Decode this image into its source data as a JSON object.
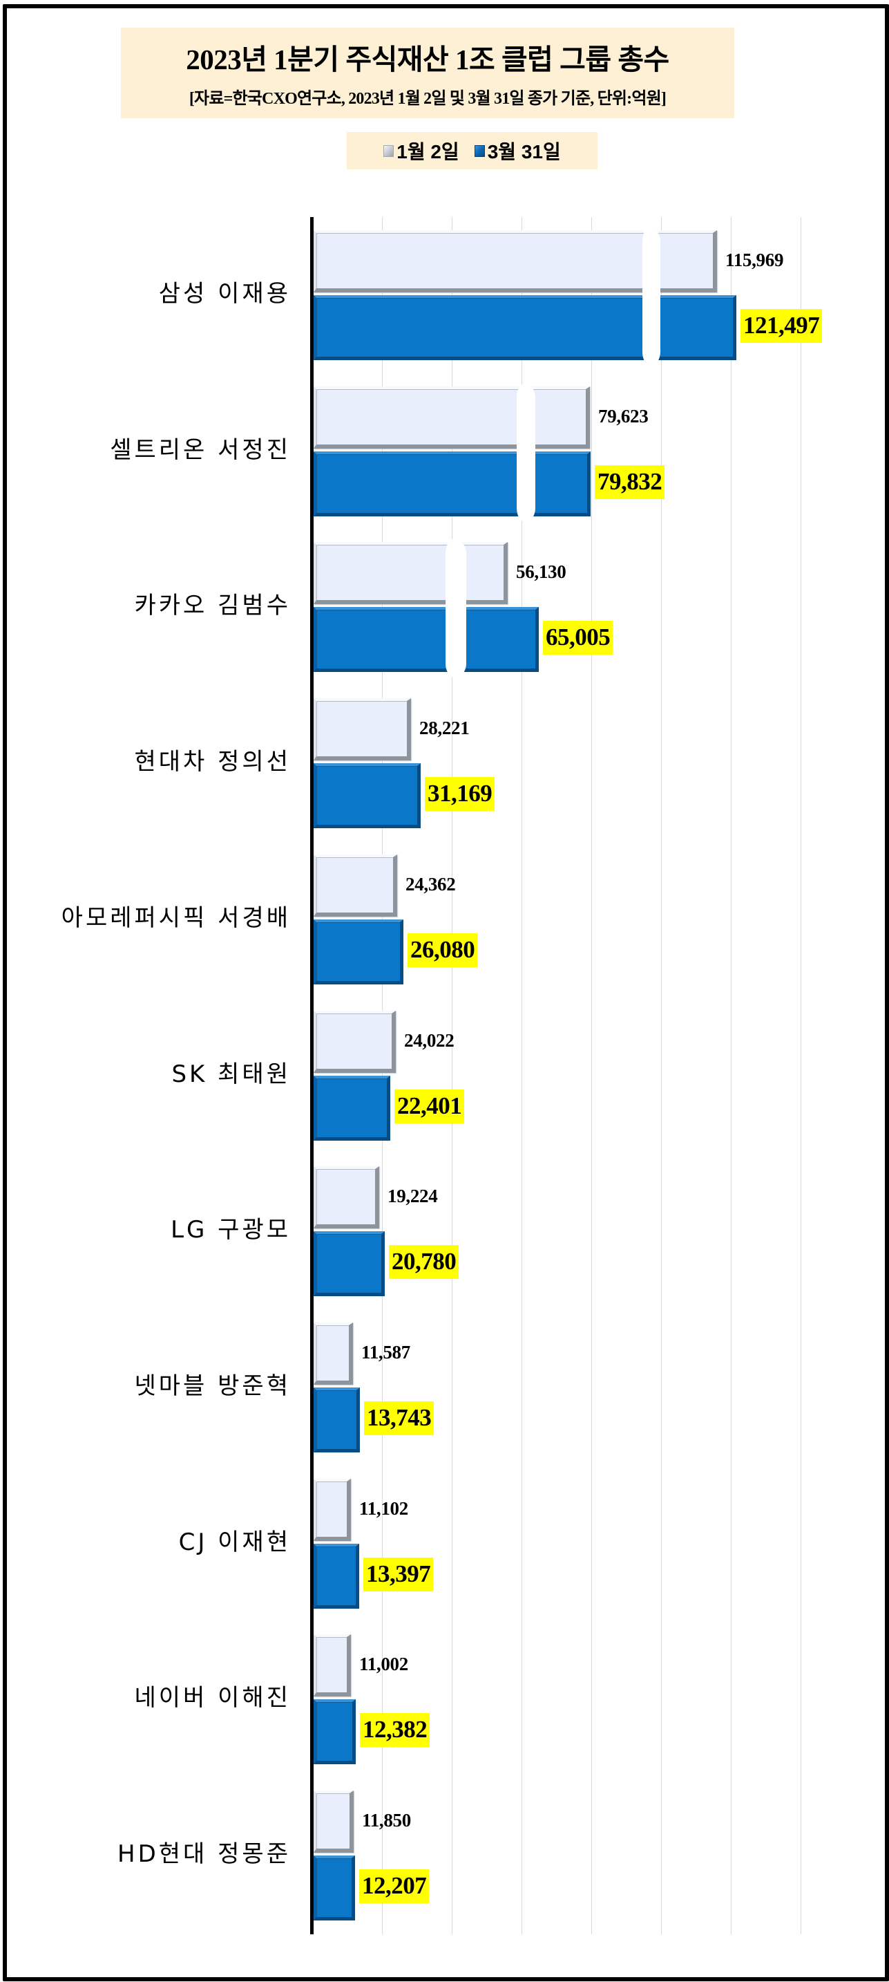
{
  "header": {
    "title": "2023년 1분기 주식재산 1조 클럽  그룹 총수",
    "subtitle": "[자료=한국CXO연구소, 2023년 1월 2일 및 3월 31일 종가 기준, 단위:억원]"
  },
  "legend": [
    {
      "label": "1월 2일",
      "color": "#E8EEFB"
    },
    {
      "label": "3월 31일",
      "color": "#0B77C9"
    }
  ],
  "colors": {
    "series_jan": "#E8EEFB",
    "series_mar": "#0B77C9",
    "label_highlight": "#FFFF00",
    "title_background": "#FDF0D4",
    "gridline": "#D9D9D9"
  },
  "rows": [
    {
      "name": "삼성 이재용",
      "jan": "115,969",
      "mar": "121,497"
    },
    {
      "name": "셀트리온 서정진",
      "jan": "79,623",
      "mar": "79,832"
    },
    {
      "name": "카카오 김범수",
      "jan": "56,130",
      "mar": "65,005"
    },
    {
      "name": "현대차 정의선",
      "jan": "28,221",
      "mar": "31,169"
    },
    {
      "name": "아모레퍼시픽 서경배",
      "jan": "24,362",
      "mar": "26,080"
    },
    {
      "name": "SK 최태원",
      "jan": "24,022",
      "mar": "22,401"
    },
    {
      "name": "LG 구광모",
      "jan": "19,224",
      "mar": "20,780"
    },
    {
      "name": "넷마블 방준혁",
      "jan": "11,587",
      "mar": "13,743"
    },
    {
      "name": "CJ 이재현",
      "jan": "11,102",
      "mar": "13,397"
    },
    {
      "name": "네이버 이해진",
      "jan": "11,002",
      "mar": "12,382"
    },
    {
      "name": "HD현대 정몽준",
      "jan": "11,850",
      "mar": "12,207"
    }
  ],
  "chart_data": {
    "type": "bar",
    "orientation": "horizontal",
    "title": "2023년 1분기 주식재산 1조 클럽  그룹 총수",
    "subtitle": "[자료=한국CXO연구소, 2023년 1월 2일 및 3월 31일 종가 기준, 단위:억원]",
    "xlabel": "",
    "ylabel": "",
    "unit": "억원",
    "categories": [
      "삼성 이재용",
      "셀트리온 서정진",
      "카카오 김범수",
      "현대차 정의선",
      "아모레퍼시픽 서경배",
      "SK 최태원",
      "LG 구광모",
      "넷마블 방준혁",
      "CJ 이재현",
      "네이버 이해진",
      "HD현대 정몽준"
    ],
    "series": [
      {
        "name": "1월 2일",
        "values": [
          115969,
          79623,
          56130,
          28221,
          24362,
          24022,
          19224,
          11587,
          11102,
          11002,
          11850
        ]
      },
      {
        "name": "3월 31일",
        "values": [
          121497,
          79832,
          65005,
          31169,
          26080,
          22401,
          20780,
          13743,
          13397,
          12382,
          12207
        ]
      }
    ],
    "xlim": [
      0,
      140000
    ],
    "grid": "vertical gridlines every 20000, no tick labels",
    "axis_breaks": [
      "삼성 이재용",
      "셀트리온 서정진",
      "카카오 김범수"
    ],
    "legend_position": "top",
    "data_labels": "shown; 3월 31일 labels highlighted in yellow"
  }
}
